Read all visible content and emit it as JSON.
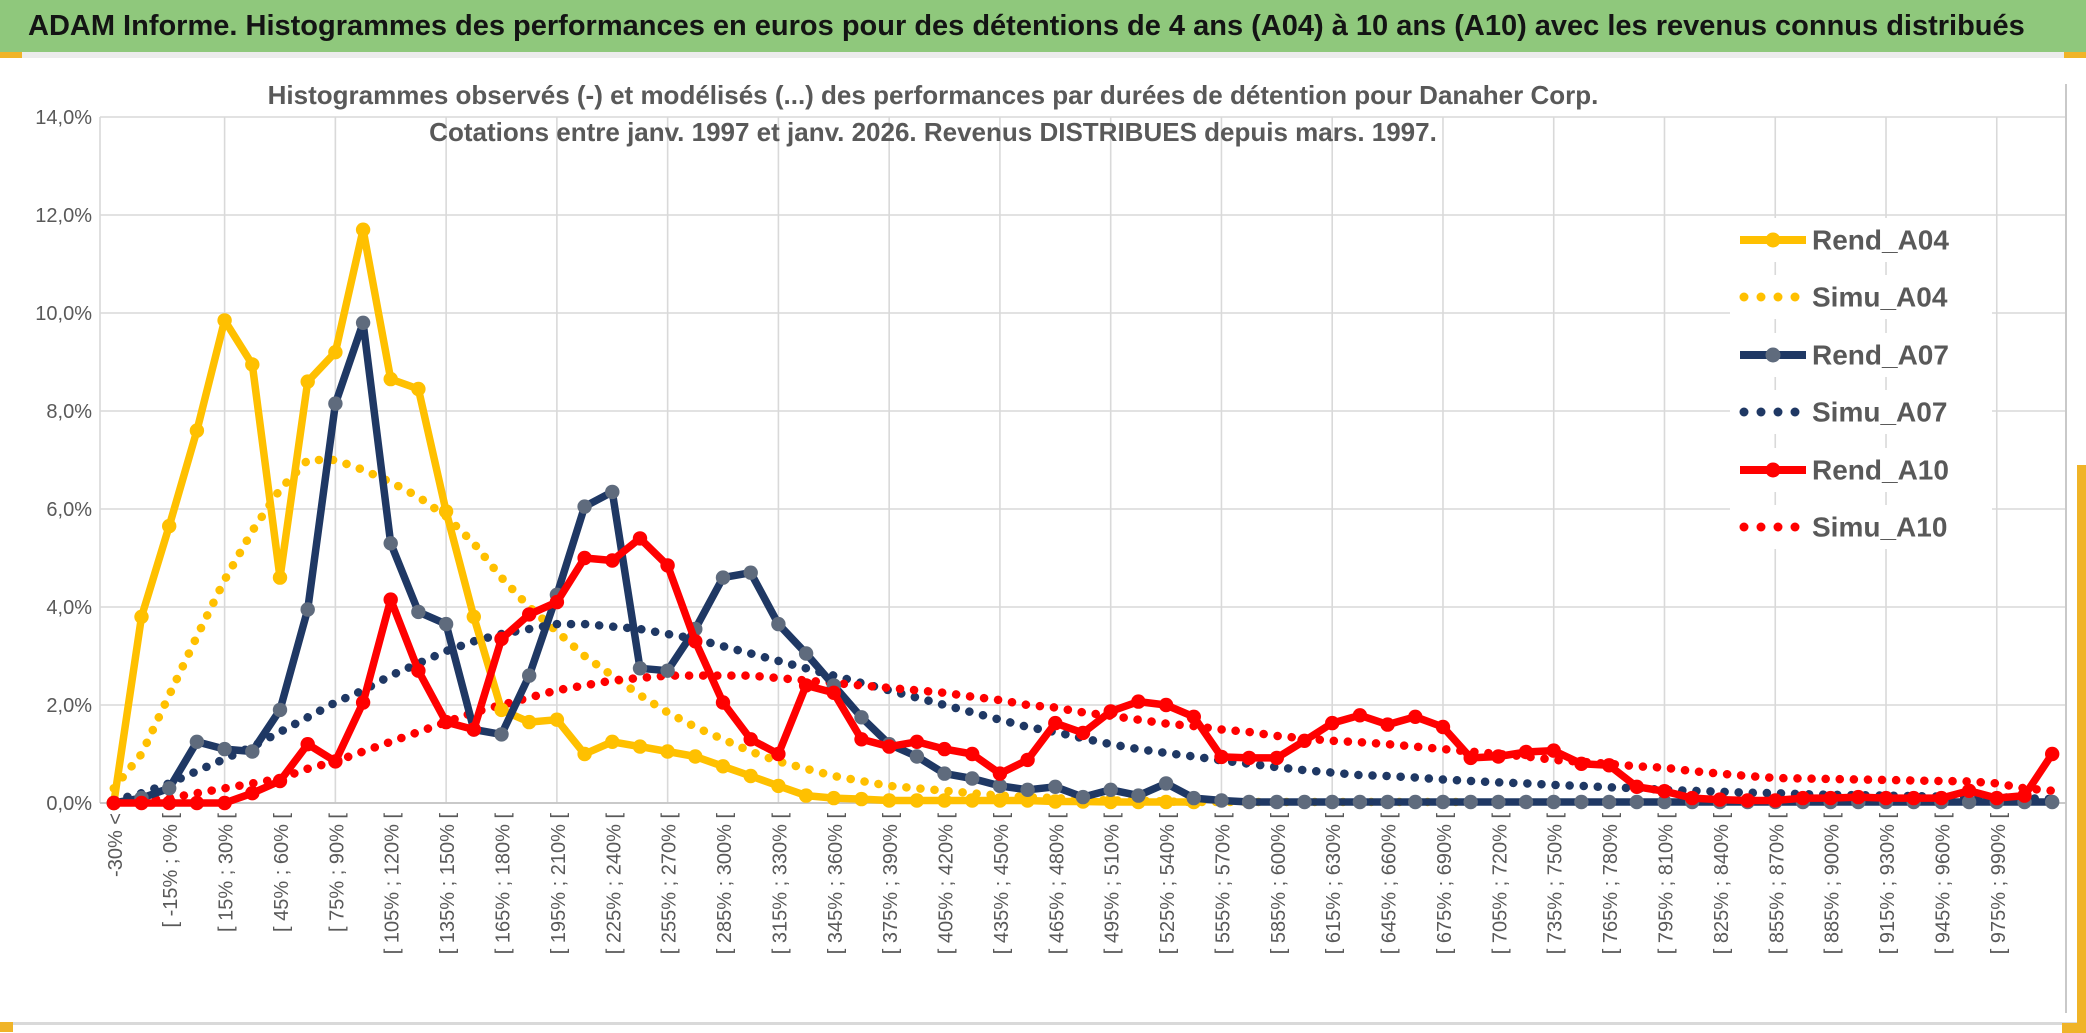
{
  "header": {
    "title": "ADAM Informe. Histogrammes des performances en euros pour des détentions de 4 ans (A04) à 10 ans (A10) avec les revenus connus distribués"
  },
  "colors": {
    "header_green": "#8fc87c",
    "accent_yellow": "#f0b428",
    "grid": "#d9d9d9",
    "axis_text": "#595959",
    "border_gray": "#c9c9c9",
    "series_gold": "#FFC000",
    "series_navy": "#1F3864",
    "series_red": "#FF0000",
    "navy_marker": "#5f6b7d"
  },
  "chart_data": {
    "type": "line",
    "title_line1": "Histogrammes observés (-) et modélisés (...) des performances par durées de détention pour Danaher Corp.",
    "title_line2": "Cotations entre janv. 1997 et janv. 2026. Revenus DISTRIBUES depuis mars. 1997.",
    "ylabel": "",
    "xlabel": "",
    "ylim": [
      0,
      14
    ],
    "grid": true,
    "legend_position": "right",
    "ytick_labels": [
      "0,0%",
      "2,0%",
      "4,0%",
      "6,0%",
      "8,0%",
      "10,0%",
      "12,0%",
      "14,0%"
    ],
    "categories": [
      "-30% <",
      "",
      "[ -15% ; 0% [",
      "",
      "[ 15% ; 30% [",
      "",
      "[ 45% ; 60% [",
      "",
      "[ 75% ; 90% [",
      "",
      "[ 105% ; 120% [",
      "",
      "[ 135% ; 150% [",
      "",
      "[ 165% ; 180% [",
      "",
      "[ 195% ; 210% [",
      "",
      "[ 225% ; 240% [",
      "",
      "[ 255% ; 270% [",
      "",
      "[ 285% ; 300% [",
      "",
      "[ 315% ; 330% [",
      "",
      "[ 345% ; 360% [",
      "",
      "[ 375% ; 390% [",
      "",
      "[ 405% ; 420% [",
      "",
      "[ 435% ; 450% [",
      "",
      "[ 465% ; 480% [",
      "",
      "[ 495% ; 510% [",
      "",
      "[ 525% ; 540% [",
      "",
      "[ 555% ; 570% [",
      "",
      "[ 585% ; 600% [",
      "",
      "[ 615% ; 630% [",
      "",
      "[ 645% ; 660% [",
      "",
      "[ 675% ; 690% [",
      "",
      "[ 705% ; 720% [",
      "",
      "[ 735% ; 750% [",
      "",
      "[ 765% ; 780% [",
      "",
      "[ 795% ; 810% [",
      "",
      "[ 825% ; 840% [",
      "",
      "[ 855% ; 870% [",
      "",
      "[ 885% ; 900% [",
      "",
      "[ 915% ; 930% [",
      "",
      "[ 945% ; 960% [",
      "",
      "[ 975% ; 990% [",
      "",
      ""
    ],
    "series": [
      {
        "name": "Rend_A04",
        "color": "#FFC000",
        "marker_color": "#FFC000",
        "style": "solid",
        "values": [
          0.0,
          3.8,
          5.65,
          7.6,
          9.85,
          8.95,
          4.6,
          8.6,
          9.2,
          11.7,
          8.65,
          8.45,
          5.95,
          3.8,
          1.9,
          1.65,
          1.7,
          1.0,
          1.25,
          1.15,
          1.05,
          0.95,
          0.75,
          0.55,
          0.35,
          0.15,
          0.1,
          0.08,
          0.05,
          0.05,
          0.05,
          0.05,
          0.05,
          0.05,
          0.03,
          0.03,
          0.02,
          0.02,
          0.02,
          0.02,
          null,
          null,
          null,
          null,
          null,
          null,
          null,
          null,
          null,
          null,
          null,
          null,
          null,
          null,
          null,
          null,
          null,
          null,
          null,
          null,
          null,
          null,
          null,
          null,
          null,
          null,
          null,
          null,
          null,
          null,
          null
        ]
      },
      {
        "name": "Simu_A04",
        "color": "#FFC000",
        "style": "dotted",
        "values": [
          0.3,
          1.0,
          2.2,
          3.4,
          4.55,
          5.55,
          6.4,
          7.0,
          7.0,
          6.8,
          6.55,
          6.25,
          5.85,
          5.3,
          4.6,
          4.0,
          3.5,
          3.0,
          2.6,
          2.2,
          1.85,
          1.55,
          1.3,
          1.05,
          0.85,
          0.7,
          0.55,
          0.45,
          0.35,
          0.3,
          0.25,
          0.2,
          0.15,
          0.12,
          0.1,
          0.07,
          0.05,
          0.05,
          0.03,
          0.02,
          0.02,
          0.02,
          0.02,
          0.02,
          0.02,
          0.02,
          0.02,
          0.02,
          0.02,
          0.02,
          null,
          null,
          null,
          null,
          null,
          null,
          null,
          null,
          null,
          null,
          null,
          null,
          null,
          null,
          null,
          null,
          null,
          null,
          null,
          null,
          null
        ]
      },
      {
        "name": "Rend_A07",
        "color": "#1F3864",
        "marker_color": "#5f6b7d",
        "style": "solid",
        "values": [
          0.0,
          0.1,
          0.3,
          1.25,
          1.1,
          1.05,
          1.9,
          3.95,
          8.15,
          9.8,
          5.3,
          3.9,
          3.65,
          1.5,
          1.4,
          2.6,
          4.25,
          6.05,
          6.35,
          2.75,
          2.7,
          3.55,
          4.6,
          4.7,
          3.65,
          3.05,
          2.4,
          1.75,
          1.2,
          0.95,
          0.6,
          0.5,
          0.35,
          0.27,
          0.33,
          0.12,
          0.27,
          0.15,
          0.4,
          0.1,
          0.05,
          0.02,
          0.02,
          0.02,
          0.02,
          0.02,
          0.02,
          0.02,
          0.02,
          0.02,
          0.02,
          0.02,
          0.02,
          0.02,
          0.02,
          0.02,
          0.02,
          0.02,
          0.02,
          0.02,
          0.02,
          0.02,
          0.02,
          0.02,
          0.02,
          0.02,
          0.02,
          0.02,
          0.02,
          0.02,
          0.02
        ]
      },
      {
        "name": "Simu_A07",
        "color": "#1F3864",
        "style": "dotted",
        "values": [
          0.05,
          0.2,
          0.4,
          0.65,
          0.9,
          1.15,
          1.45,
          1.75,
          2.05,
          2.3,
          2.6,
          2.85,
          3.1,
          3.3,
          3.45,
          3.55,
          3.65,
          3.65,
          3.6,
          3.55,
          3.45,
          3.35,
          3.2,
          3.05,
          2.9,
          2.75,
          2.6,
          2.45,
          2.3,
          2.15,
          2.0,
          1.85,
          1.7,
          1.55,
          1.45,
          1.32,
          1.2,
          1.1,
          1.02,
          0.95,
          0.87,
          0.8,
          0.73,
          0.67,
          0.62,
          0.57,
          0.55,
          0.52,
          0.48,
          0.45,
          0.42,
          0.4,
          0.37,
          0.35,
          0.32,
          0.3,
          0.27,
          0.25,
          0.23,
          0.21,
          0.2,
          0.18,
          0.17,
          0.16,
          0.15,
          0.14,
          0.13,
          0.12,
          0.12,
          0.1,
          0.08
        ]
      },
      {
        "name": "Rend_A10",
        "color": "#FF0000",
        "marker_color": "#FF0000",
        "style": "solid",
        "values": [
          0.0,
          0.0,
          0.0,
          0.0,
          0.0,
          0.2,
          0.45,
          1.2,
          0.85,
          2.05,
          4.15,
          2.7,
          1.65,
          1.5,
          3.35,
          3.85,
          4.1,
          5.0,
          4.95,
          5.4,
          4.85,
          3.3,
          2.05,
          1.3,
          1.0,
          2.4,
          2.25,
          1.3,
          1.15,
          1.25,
          1.1,
          1.0,
          0.6,
          0.88,
          1.63,
          1.43,
          1.87,
          2.07,
          2.0,
          1.76,
          0.94,
          0.92,
          0.92,
          1.27,
          1.63,
          1.79,
          1.6,
          1.76,
          1.55,
          0.92,
          0.95,
          1.04,
          1.07,
          0.8,
          0.77,
          0.33,
          0.24,
          0.1,
          0.07,
          0.05,
          0.05,
          0.1,
          0.1,
          0.12,
          0.1,
          0.1,
          0.1,
          0.25,
          0.1,
          0.15,
          1.0
        ]
      },
      {
        "name": "Simu_A10",
        "color": "#FF0000",
        "style": "dotted",
        "values": [
          0.0,
          0.05,
          0.1,
          0.2,
          0.3,
          0.4,
          0.5,
          0.7,
          0.85,
          1.05,
          1.25,
          1.45,
          1.65,
          1.85,
          2.0,
          2.15,
          2.3,
          2.4,
          2.5,
          2.55,
          2.6,
          2.6,
          2.6,
          2.6,
          2.55,
          2.5,
          2.45,
          2.4,
          2.35,
          2.3,
          2.25,
          2.17,
          2.1,
          2.0,
          1.95,
          1.85,
          1.78,
          1.7,
          1.62,
          1.57,
          1.5,
          1.45,
          1.37,
          1.32,
          1.27,
          1.24,
          1.2,
          1.15,
          1.1,
          1.05,
          1.0,
          0.95,
          0.88,
          0.84,
          0.8,
          0.75,
          0.72,
          0.65,
          0.6,
          0.55,
          0.51,
          0.5,
          0.49,
          0.48,
          0.47,
          0.46,
          0.45,
          0.44,
          0.4,
          0.3,
          0.25
        ]
      }
    ]
  }
}
